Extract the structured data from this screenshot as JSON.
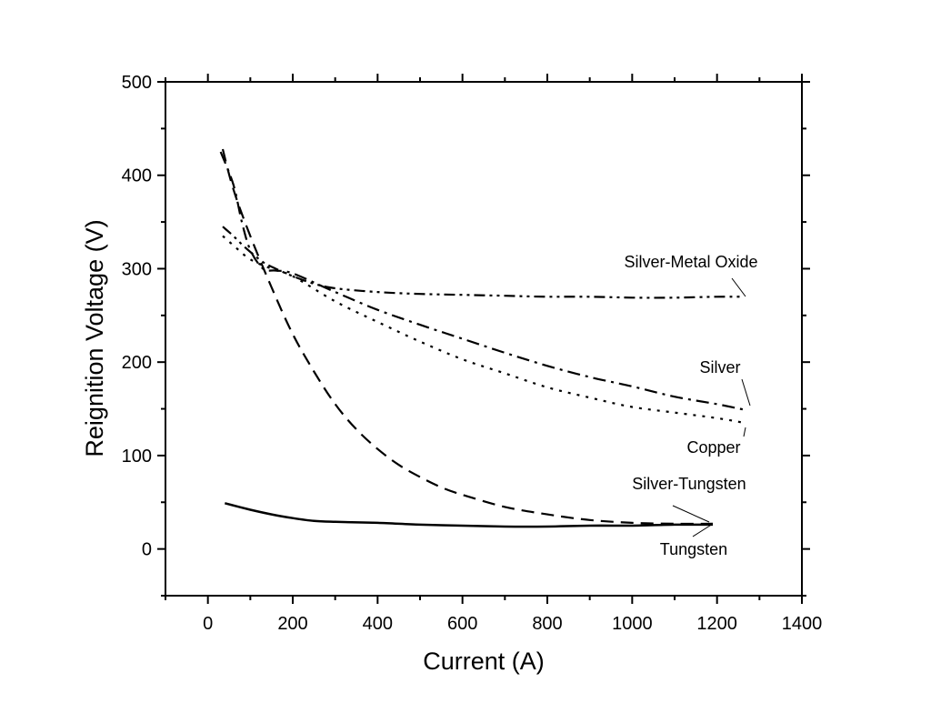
{
  "chart_data": {
    "type": "line",
    "title": "",
    "xlabel": "Current (A)",
    "ylabel": "Reignition Voltage (V)",
    "xlim": [
      -100,
      1400
    ],
    "ylim": [
      -50,
      500
    ],
    "x_ticks": [
      0,
      200,
      400,
      600,
      800,
      1000,
      1200,
      1400
    ],
    "y_ticks": [
      0,
      100,
      200,
      300,
      400,
      500
    ],
    "grid": false,
    "legend": "none",
    "series": [
      {
        "name": "Silver-Metal Oxide",
        "dash": "dash-dot-dot",
        "x": [
          35,
          60,
          80,
          100,
          130,
          160,
          200,
          250,
          300,
          400,
          500,
          600,
          700,
          800,
          900,
          1000,
          1100,
          1200,
          1260
        ],
        "y": [
          345,
          335,
          326,
          318,
          307,
          300,
          292,
          284,
          279,
          275,
          273,
          272,
          271,
          270,
          270,
          269,
          269,
          270,
          270
        ]
      },
      {
        "name": "Silver",
        "dash": "dash-dot",
        "x": [
          30,
          60,
          80,
          100,
          130,
          160,
          200,
          300,
          400,
          500,
          600,
          700,
          800,
          900,
          1000,
          1100,
          1200,
          1265
        ],
        "y": [
          425,
          390,
          350,
          320,
          300,
          298,
          295,
          275,
          256,
          240,
          225,
          210,
          196,
          184,
          174,
          163,
          155,
          149
        ]
      },
      {
        "name": "Copper",
        "dash": "dotted",
        "x": [
          35,
          60,
          100,
          150,
          200,
          300,
          400,
          500,
          600,
          700,
          800,
          900,
          1000,
          1100,
          1200,
          1265
        ],
        "y": [
          335,
          325,
          310,
          300,
          292,
          265,
          243,
          222,
          203,
          188,
          173,
          162,
          152,
          146,
          140,
          135
        ]
      },
      {
        "name": "Tungsten",
        "dash": "dashed",
        "x": [
          35,
          60,
          100,
          150,
          200,
          250,
          300,
          350,
          400,
          450,
          500,
          550,
          600,
          700,
          800,
          900,
          1000,
          1100,
          1190
        ],
        "y": [
          428,
          385,
          335,
          280,
          230,
          190,
          155,
          128,
          107,
          90,
          77,
          66,
          58,
          45,
          37,
          31,
          28,
          27,
          27
        ]
      },
      {
        "name": "Silver-Tungsten",
        "dash": "solid",
        "x": [
          40,
          100,
          150,
          200,
          250,
          300,
          400,
          500,
          600,
          700,
          800,
          900,
          1000,
          1100,
          1190
        ],
        "y": [
          49,
          42,
          37,
          33,
          30,
          29,
          28,
          26,
          25,
          24,
          24,
          25,
          25,
          26,
          26
        ]
      }
    ]
  }
}
